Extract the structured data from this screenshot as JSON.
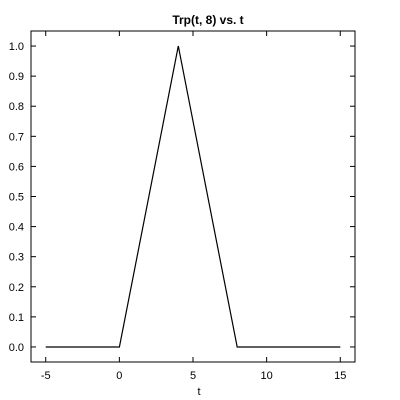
{
  "chart_data": {
    "type": "line",
    "title": "Trp(t, 8) vs. t",
    "xlabel": "t",
    "ylabel": "",
    "xlim": [
      -6,
      16
    ],
    "ylim": [
      -0.05,
      1.05
    ],
    "xticks": [
      -5,
      0,
      5,
      10,
      15
    ],
    "xtick_labels": [
      "-5",
      "0",
      "5",
      "10",
      "15"
    ],
    "yticks": [
      0.0,
      0.1,
      0.2,
      0.3,
      0.4,
      0.5,
      0.6,
      0.7,
      0.8,
      0.9,
      1.0
    ],
    "ytick_labels": [
      "0.0",
      "0.1",
      "0.2",
      "0.3",
      "0.4",
      "0.5",
      "0.6",
      "0.7",
      "0.8",
      "0.9",
      "1.0"
    ],
    "grid": false,
    "legend": "none",
    "series": [
      {
        "color": "#000000",
        "x": [
          -5,
          0,
          4,
          8,
          15
        ],
        "y": [
          0,
          0,
          1,
          0,
          0
        ]
      }
    ]
  }
}
